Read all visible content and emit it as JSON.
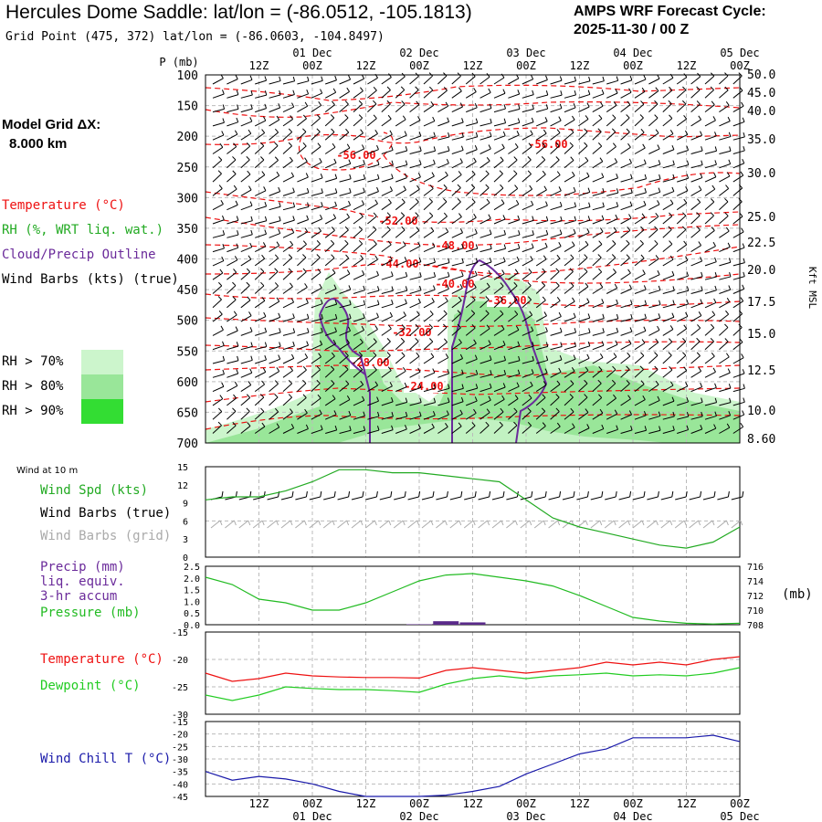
{
  "header": {
    "title": "Hercules Dome Saddle:  lat/lon = (-86.0512, -105.1813)",
    "subtitle": "Grid Point (475, 372) lat/lon = (-86.0603, -104.8497)",
    "cycle_line1": "AMPS WRF Forecast Cycle:",
    "cycle_line2": "2025-11-30 / 00  Z"
  },
  "model_grid": {
    "label": "Model Grid ΔX:",
    "value": "8.000 km"
  },
  "time_axis": {
    "hour_labels": [
      "12Z",
      "00Z",
      "12Z",
      "00Z",
      "12Z",
      "00Z",
      "12Z",
      "00Z",
      "12Z",
      "00Z"
    ],
    "date_labels": [
      "01 Dec",
      "02 Dec",
      "03 Dec",
      "04 Dec",
      "05 Dec"
    ]
  },
  "upper_legend": {
    "temperature": "Temperature (°C)",
    "rh": "RH (%, WRT liq. wat.)",
    "cloud": "Cloud/Precip Outline",
    "wind": "Wind Barbs (kts) (true)",
    "rh70": "RH > 70%",
    "rh80": "RH > 80%",
    "rh90": "RH > 90%"
  },
  "colors": {
    "temperature": "#ee1111",
    "rh": "#22aa22",
    "cloud": "#6a2a9a",
    "pressure": "#22bb22",
    "dewpoint": "#22cc22",
    "windchill": "#1a1aaa",
    "precip": "#5a2a8a",
    "rh70": "#ccf5cc",
    "rh80": "#99e699",
    "rh90": "#33dd33",
    "grid_barbs": "#aaaaaa"
  },
  "surface_legend": {
    "wind10m": "Wind at 10 m",
    "spd": "Wind Spd (kts)",
    "barbs_true": "Wind Barbs (true)",
    "barbs_grid": "Wind Barbs (grid)",
    "precip1": "Precip (mm)",
    "precip2": "liq. equiv.",
    "precip3": "3-hr accum",
    "pressure": "Pressure (mb)",
    "pressure_unit": "(mb)",
    "temperature": "Temperature (°C)",
    "dewpoint": "Dewpoint (°C)",
    "windchill": "Wind Chill T (°C)"
  },
  "chart_data": [
    {
      "type": "time-height cross section",
      "ylabel": "P (mb)",
      "right_label": "Kft MSL",
      "y_ticks": [
        "100",
        "150",
        "200",
        "250",
        "300",
        "350",
        "400",
        "450",
        "500",
        "550",
        "600",
        "650",
        "700"
      ],
      "right_ticks": [
        "50.0",
        "45.0",
        "40.0",
        "35.0",
        "30.0",
        "25.0",
        "22.5",
        "20.0",
        "17.5",
        "15.0",
        "12.5",
        "10.0",
        "8.60"
      ],
      "temperature_contour_labels": [
        "-56.00",
        "-56.00",
        "-52.00",
        "-48.00",
        "-44.00",
        "-40.00",
        "-36.00",
        "-32.00",
        "-28.00",
        "-24.00"
      ]
    },
    {
      "type": "line",
      "name": "Wind Spd (kts)",
      "y_ticks": [
        "15",
        "12",
        "9",
        "6",
        "3",
        "0"
      ],
      "ylim": [
        0,
        15
      ],
      "x_forecast_hours": [
        0,
        6,
        12,
        18,
        24,
        30,
        36,
        42,
        48,
        54,
        60,
        66,
        72,
        78,
        84,
        90,
        96,
        102,
        108,
        114,
        120
      ],
      "values": [
        9.5,
        10,
        10,
        11,
        12.5,
        14.5,
        14.5,
        14,
        14,
        13.5,
        13,
        12.5,
        9.5,
        6.5,
        5,
        4,
        3,
        2,
        1.5,
        2.5,
        5
      ]
    },
    {
      "type": "line",
      "name": "Pressure (mb) / Precip (mm)",
      "left_ticks": [
        "2.5",
        "2.0",
        "1.5",
        "1.0",
        "0.5",
        "0.0"
      ],
      "right_ticks": [
        "716",
        "714",
        "712",
        "710",
        "708"
      ],
      "x_forecast_hours": [
        0,
        6,
        12,
        18,
        24,
        30,
        36,
        42,
        48,
        54,
        60,
        66,
        72,
        78,
        84,
        90,
        96,
        102,
        108,
        114,
        120
      ],
      "pressure": [
        714.5,
        713.5,
        711.5,
        711,
        710,
        710,
        711,
        712.5,
        714,
        714.8,
        715,
        714.5,
        714,
        713.3,
        712,
        710.5,
        709,
        708.5,
        708.2,
        708.1,
        708.2
      ],
      "precip": [
        0,
        0,
        0,
        0,
        0,
        0,
        0,
        0,
        0.02,
        0.15,
        0.1,
        0,
        0,
        0,
        0,
        0,
        0,
        0,
        0,
        0,
        0
      ]
    },
    {
      "type": "line",
      "name": "Temperature / Dewpoint (°C)",
      "y_ticks": [
        "-15",
        "-20",
        "-25",
        "-30"
      ],
      "ylim": [
        -30,
        -15
      ],
      "x_forecast_hours": [
        0,
        6,
        12,
        18,
        24,
        30,
        36,
        42,
        48,
        54,
        60,
        66,
        72,
        78,
        84,
        90,
        96,
        102,
        108,
        114,
        120
      ],
      "temperature": [
        -22.5,
        -24,
        -23.5,
        -22.5,
        -23,
        -23.2,
        -23.3,
        -23.3,
        -23.4,
        -22,
        -21.5,
        -22,
        -22.5,
        -22,
        -21.5,
        -20.5,
        -21,
        -20.5,
        -21,
        -20,
        -19.5
      ],
      "dewpoint": [
        -26.5,
        -27.5,
        -26.5,
        -25,
        -25.3,
        -25.5,
        -25.5,
        -25.7,
        -26,
        -24.5,
        -23.5,
        -23,
        -23.5,
        -23,
        -22.8,
        -22.5,
        -23,
        -22.8,
        -23,
        -22.5,
        -21.5
      ]
    },
    {
      "type": "line",
      "name": "Wind Chill T (°C)",
      "y_ticks": [
        "-15",
        "-20",
        "-25",
        "-30",
        "-35",
        "-40",
        "-45"
      ],
      "ylim": [
        -45,
        -15
      ],
      "x_forecast_hours": [
        0,
        6,
        12,
        18,
        24,
        30,
        36,
        42,
        48,
        54,
        60,
        66,
        72,
        78,
        84,
        90,
        96,
        102,
        108,
        114,
        120
      ],
      "values": [
        -35,
        -38.5,
        -37,
        -38,
        -40,
        -43,
        -45.5,
        -45,
        -45,
        -44.5,
        -43,
        -41,
        -36,
        -32,
        -28,
        -26,
        -21.5,
        -21.5,
        -21.5,
        -20.5,
        -23
      ]
    }
  ]
}
